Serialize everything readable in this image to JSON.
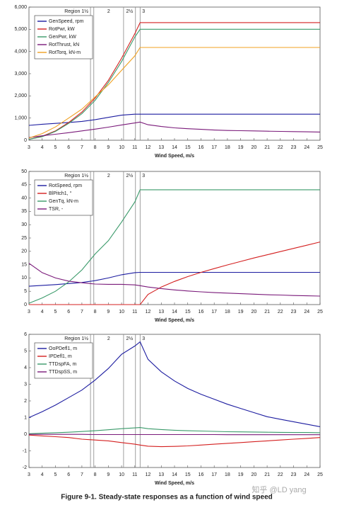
{
  "chart_data": [
    {
      "type": "line",
      "x_label": "Wind Speed, m/s",
      "x": [
        3,
        4,
        5,
        6,
        7,
        8,
        9,
        10,
        11,
        11.4,
        12,
        13,
        14,
        15,
        16,
        17,
        18,
        19,
        20,
        21,
        22,
        23,
        24,
        25
      ],
      "xlim": [
        3,
        25
      ],
      "xticks": [
        3,
        4,
        5,
        6,
        7,
        8,
        9,
        10,
        11,
        12,
        13,
        14,
        15,
        16,
        17,
        18,
        19,
        20,
        21,
        22,
        23,
        24,
        25
      ],
      "ylim": [
        0,
        6000
      ],
      "yticks": [
        0,
        {
          "value": 1000,
          "label": "1,000"
        },
        {
          "value": 2000,
          "label": "2,000"
        },
        {
          "value": 3000,
          "label": "3,000"
        },
        {
          "value": 4000,
          "label": "4,000"
        },
        {
          "value": 5000,
          "label": "5,000"
        },
        {
          "value": 6000,
          "label": "6,000"
        }
      ],
      "region_lines": [
        7.65,
        7.9,
        10.15,
        11.05,
        11.4
      ],
      "region_labels": [
        "Region 1½",
        "2",
        "2½",
        "3"
      ],
      "legend": "upper left",
      "series": [
        {
          "name": "GenSpeed, rpm",
          "color": "#1c1ca0",
          "values": [
            670,
            720,
            760,
            800,
            850,
            930,
            1030,
            1130,
            1173,
            1174,
            1174,
            1174,
            1174,
            1174,
            1174,
            1174,
            1174,
            1174,
            1174,
            1174,
            1174,
            1174,
            1174,
            1174
          ]
        },
        {
          "name": "RotPwr, kW",
          "color": "#d42020",
          "values": [
            40,
            180,
            420,
            800,
            1270,
            1900,
            2700,
            3700,
            4800,
            5300,
            5300,
            5300,
            5300,
            5300,
            5300,
            5300,
            5300,
            5300,
            5300,
            5300,
            5300,
            5300,
            5300,
            5300
          ]
        },
        {
          "name": "GenPwr, kW",
          "color": "#3a9a6a",
          "values": [
            40,
            160,
            400,
            760,
            1200,
            1800,
            2600,
            3550,
            4650,
            5000,
            5000,
            5000,
            5000,
            5000,
            5000,
            5000,
            5000,
            5000,
            5000,
            5000,
            5000,
            5000,
            5000,
            5000
          ]
        },
        {
          "name": "RotThrust, kN",
          "color": "#7a1a7a",
          "values": [
            120,
            200,
            270,
            340,
            420,
            500,
            590,
            690,
            780,
            820,
            700,
            620,
            560,
            520,
            490,
            460,
            440,
            430,
            420,
            410,
            400,
            390,
            380,
            370
          ]
        },
        {
          "name": "RotTorq, kN-m",
          "color": "#f0a020",
          "values": [
            100,
            300,
            600,
            1000,
            1400,
            1950,
            2500,
            3150,
            3800,
            4180,
            4180,
            4180,
            4180,
            4180,
            4180,
            4180,
            4180,
            4180,
            4180,
            4180,
            4180,
            4180,
            4180,
            4180
          ]
        }
      ]
    },
    {
      "type": "line",
      "x_label": "Wind Speed, m/s",
      "x": [
        3,
        4,
        5,
        6,
        7,
        8,
        9,
        10,
        11,
        11.4,
        12,
        13,
        14,
        15,
        16,
        17,
        18,
        19,
        20,
        21,
        22,
        23,
        24,
        25
      ],
      "xlim": [
        3,
        25
      ],
      "xticks": [
        3,
        4,
        5,
        6,
        7,
        8,
        9,
        10,
        11,
        12,
        13,
        14,
        15,
        16,
        17,
        18,
        19,
        20,
        21,
        22,
        23,
        24,
        25
      ],
      "ylim": [
        0,
        50
      ],
      "yticks": [
        0,
        5,
        10,
        15,
        20,
        25,
        30,
        35,
        40,
        45,
        50
      ],
      "region_lines": [
        7.65,
        7.9,
        10.15,
        11.05,
        11.4
      ],
      "region_labels": [
        "Region 1½",
        "2",
        "2½",
        "3"
      ],
      "legend": "upper left",
      "series": [
        {
          "name": "RotSpeed, rpm",
          "color": "#1c1ca0",
          "values": [
            6.9,
            7.2,
            7.5,
            7.9,
            8.3,
            9.0,
            10.0,
            11.2,
            12.0,
            12.1,
            12.1,
            12.1,
            12.1,
            12.1,
            12.1,
            12.1,
            12.1,
            12.1,
            12.1,
            12.1,
            12.1,
            12.1,
            12.1,
            12.1
          ]
        },
        {
          "name": "BlPitch1, °",
          "color": "#d42020",
          "values": [
            0,
            0,
            0,
            0,
            0,
            0,
            0,
            0,
            0,
            0,
            3.8,
            6.6,
            8.7,
            10.5,
            12.1,
            13.5,
            14.9,
            16.2,
            17.5,
            18.7,
            19.9,
            21.1,
            22.3,
            23.5
          ]
        },
        {
          "name": "GenTq, kN-m",
          "color": "#3a9a6a",
          "values": [
            0.5,
            2.5,
            5,
            8.5,
            13,
            19,
            24,
            31,
            38.5,
            43.1,
            43.1,
            43.1,
            43.1,
            43.1,
            43.1,
            43.1,
            43.1,
            43.1,
            43.1,
            43.1,
            43.1,
            43.1,
            43.1,
            43.1
          ]
        },
        {
          "name": "TSR, -",
          "color": "#7a1a7a",
          "values": [
            15.5,
            12,
            10,
            8.8,
            8.2,
            7.7,
            7.6,
            7.6,
            7.4,
            7.1,
            6.6,
            6,
            5.5,
            5.1,
            4.8,
            4.5,
            4.3,
            4.1,
            3.9,
            3.7,
            3.6,
            3.4,
            3.3,
            3.2
          ]
        }
      ]
    },
    {
      "type": "line",
      "x_label": "Wind Speed, m/s",
      "x": [
        3,
        4,
        5,
        6,
        7,
        8,
        9,
        10,
        11,
        11.4,
        12,
        13,
        14,
        15,
        16,
        17,
        18,
        19,
        20,
        21,
        22,
        23,
        24,
        25
      ],
      "xlim": [
        3,
        25
      ],
      "xticks": [
        3,
        4,
        5,
        6,
        7,
        8,
        9,
        10,
        11,
        12,
        13,
        14,
        15,
        16,
        17,
        18,
        19,
        20,
        21,
        22,
        23,
        24,
        25
      ],
      "ylim": [
        -2,
        6
      ],
      "yticks": [
        -2,
        -1,
        0,
        1,
        2,
        3,
        4,
        5,
        6
      ],
      "region_lines": [
        7.65,
        7.9,
        10.15,
        11.05,
        11.4
      ],
      "region_labels": [
        "Region 1½",
        "2",
        "2½",
        "3"
      ],
      "legend": "upper left",
      "series": [
        {
          "name": "OoPDefl1, m",
          "color": "#1c1ca0",
          "values": [
            1.0,
            1.35,
            1.75,
            2.2,
            2.65,
            3.25,
            3.95,
            4.8,
            5.3,
            5.55,
            4.5,
            3.75,
            3.2,
            2.75,
            2.4,
            2.1,
            1.8,
            1.55,
            1.3,
            1.05,
            0.9,
            0.75,
            0.6,
            0.45
          ]
        },
        {
          "name": "IPDefl1, m",
          "color": "#d42020",
          "values": [
            -0.05,
            -0.1,
            -0.15,
            -0.2,
            -0.3,
            -0.35,
            -0.4,
            -0.5,
            -0.6,
            -0.65,
            -0.72,
            -0.75,
            -0.73,
            -0.7,
            -0.65,
            -0.6,
            -0.55,
            -0.5,
            -0.45,
            -0.4,
            -0.35,
            -0.3,
            -0.25,
            -0.2
          ]
        },
        {
          "name": "TTDspFA, m",
          "color": "#3a9a6a",
          "values": [
            0.03,
            0.06,
            0.09,
            0.12,
            0.16,
            0.21,
            0.27,
            0.33,
            0.38,
            0.4,
            0.33,
            0.28,
            0.24,
            0.21,
            0.19,
            0.17,
            0.15,
            0.14,
            0.13,
            0.12,
            0.11,
            0.1,
            0.1,
            0.09
          ]
        },
        {
          "name": "TTDspSS, m",
          "color": "#7a1a7a",
          "values": [
            -0.01,
            -0.01,
            -0.01,
            -0.01,
            -0.01,
            -0.02,
            -0.02,
            -0.02,
            -0.02,
            -0.02,
            -0.02,
            -0.02,
            -0.02,
            -0.02,
            -0.02,
            -0.02,
            -0.03,
            -0.03,
            -0.03,
            -0.03,
            -0.03,
            -0.03,
            -0.03,
            -0.03
          ]
        }
      ]
    }
  ],
  "caption": "Figure 9-1.  Steady-state responses as a function of wind speed",
  "watermark": "知乎 @LD yang"
}
